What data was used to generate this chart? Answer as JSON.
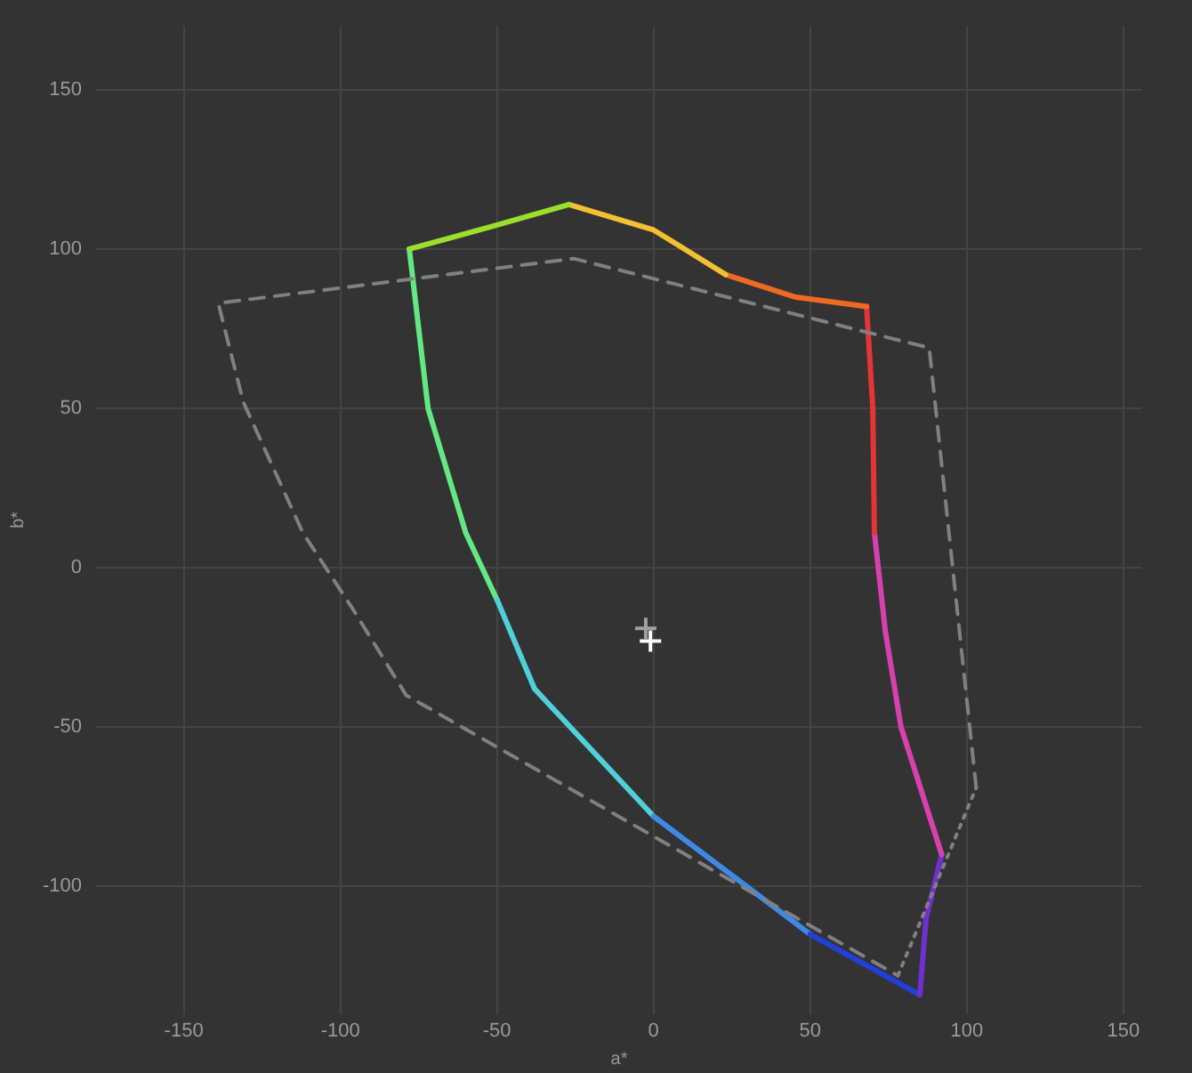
{
  "chart_data": {
    "type": "line",
    "xlabel": "a*",
    "ylabel": "b*",
    "xlim": [
      -178,
      156
    ],
    "ylim": [
      -140,
      170
    ],
    "xticks": [
      -150,
      -100,
      -50,
      0,
      50,
      100,
      150
    ],
    "yticks": [
      -100,
      -50,
      0,
      50,
      100,
      150
    ],
    "grid": true,
    "legend": false,
    "series": [
      {
        "type": "line",
        "marker": "none",
        "line_style": "dashed",
        "color": "#808080",
        "x": [
          103,
          88,
          -25.5,
          -139,
          -131,
          -112,
          -96,
          -79,
          78
        ],
        "values": [
          -69,
          69,
          97,
          83,
          52,
          11,
          -13,
          -40,
          -128
        ]
      },
      {
        "type": "line",
        "marker": "none",
        "line_style": "dotted",
        "color": "#808080",
        "x": [
          78,
          103
        ],
        "values": [
          -128,
          -69
        ]
      },
      {
        "type": "line",
        "marker": "none",
        "line_style": "solid",
        "color": "#9ae02a",
        "x": [
          -78,
          -52,
          -27
        ],
        "values": [
          100,
          107,
          114
        ]
      },
      {
        "type": "line",
        "marker": "none",
        "line_style": "solid",
        "color": "#f2c030",
        "x": [
          -27,
          0,
          23
        ],
        "values": [
          114,
          106,
          92
        ]
      },
      {
        "type": "line",
        "marker": "none",
        "line_style": "solid",
        "color": "#ee6a22",
        "x": [
          23,
          45,
          68
        ],
        "values": [
          92,
          85,
          82
        ]
      },
      {
        "type": "line",
        "marker": "none",
        "line_style": "solid",
        "color": "#e43438",
        "x": [
          68,
          70,
          70.5
        ],
        "values": [
          82,
          50,
          11
        ]
      },
      {
        "type": "line",
        "marker": "none",
        "line_style": "solid",
        "color": "#d840b0",
        "x": [
          70.5,
          74,
          79,
          92
        ],
        "values": [
          11,
          -20,
          -50,
          -90
        ]
      },
      {
        "type": "line",
        "marker": "none",
        "line_style": "solid",
        "color": "#7030d0",
        "x": [
          92,
          87,
          85
        ],
        "values": [
          -90,
          -110,
          -134
        ]
      },
      {
        "type": "line",
        "marker": "none",
        "line_style": "solid",
        "color": "#2040d8",
        "x": [
          85,
          50
        ],
        "values": [
          -134,
          -115
        ]
      },
      {
        "type": "line",
        "marker": "none",
        "line_style": "solid",
        "color": "#3c8ae6",
        "x": [
          50,
          0
        ],
        "values": [
          -115,
          -78
        ]
      },
      {
        "type": "line",
        "marker": "none",
        "line_style": "solid",
        "color": "#50d0d8",
        "x": [
          0,
          -38,
          -50
        ],
        "values": [
          -78,
          -38,
          -10
        ]
      },
      {
        "type": "line",
        "marker": "none",
        "line_style": "solid",
        "color": "#64e884",
        "x": [
          -50,
          -60,
          -72,
          -78
        ],
        "values": [
          -10,
          11,
          50,
          100
        ]
      },
      {
        "type": "scatter",
        "marker": "cross",
        "color": "#a0a0a0",
        "x": [
          -2.5
        ],
        "values": [
          -19
        ]
      },
      {
        "type": "scatter",
        "marker": "cross",
        "color": "#ffffff",
        "x": [
          -1
        ],
        "values": [
          -23
        ]
      }
    ]
  }
}
